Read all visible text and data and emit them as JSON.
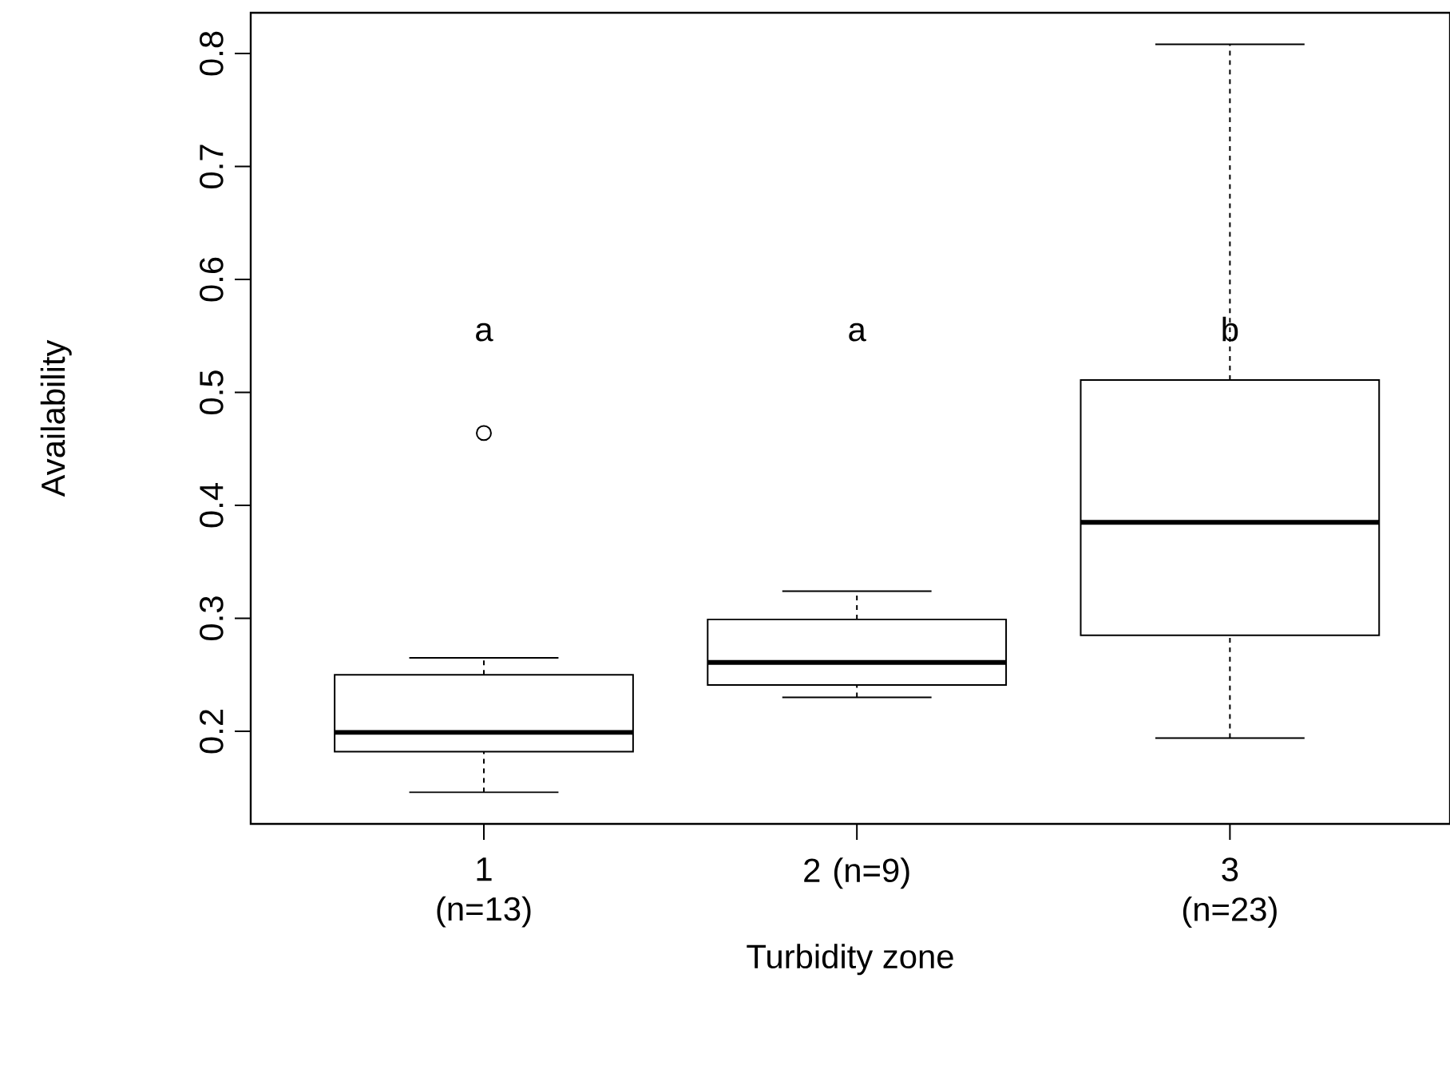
{
  "chart_data": {
    "type": "box",
    "xlabel": "Turbidity zone",
    "ylabel": "Availability",
    "categories": [
      "1 (n=13)",
      "2 (n=9)",
      "3 (n=23)"
    ],
    "boxes": [
      {
        "low": 0.146,
        "q1": 0.182,
        "median": 0.199,
        "q3": 0.25,
        "high": 0.265,
        "outliers": [
          0.464
        ]
      },
      {
        "low": 0.23,
        "q1": 0.241,
        "median": 0.261,
        "q3": 0.299,
        "high": 0.324
      },
      {
        "low": 0.194,
        "q1": 0.285,
        "median": 0.385,
        "q3": 0.511,
        "high": 0.808
      }
    ],
    "ylim": [
      0.118,
      0.836
    ],
    "yticks": [
      0.2,
      0.3,
      0.4,
      0.5,
      0.6,
      0.7,
      0.8
    ],
    "annotations": [
      "a",
      "a",
      "b"
    ],
    "color": "#000000"
  }
}
